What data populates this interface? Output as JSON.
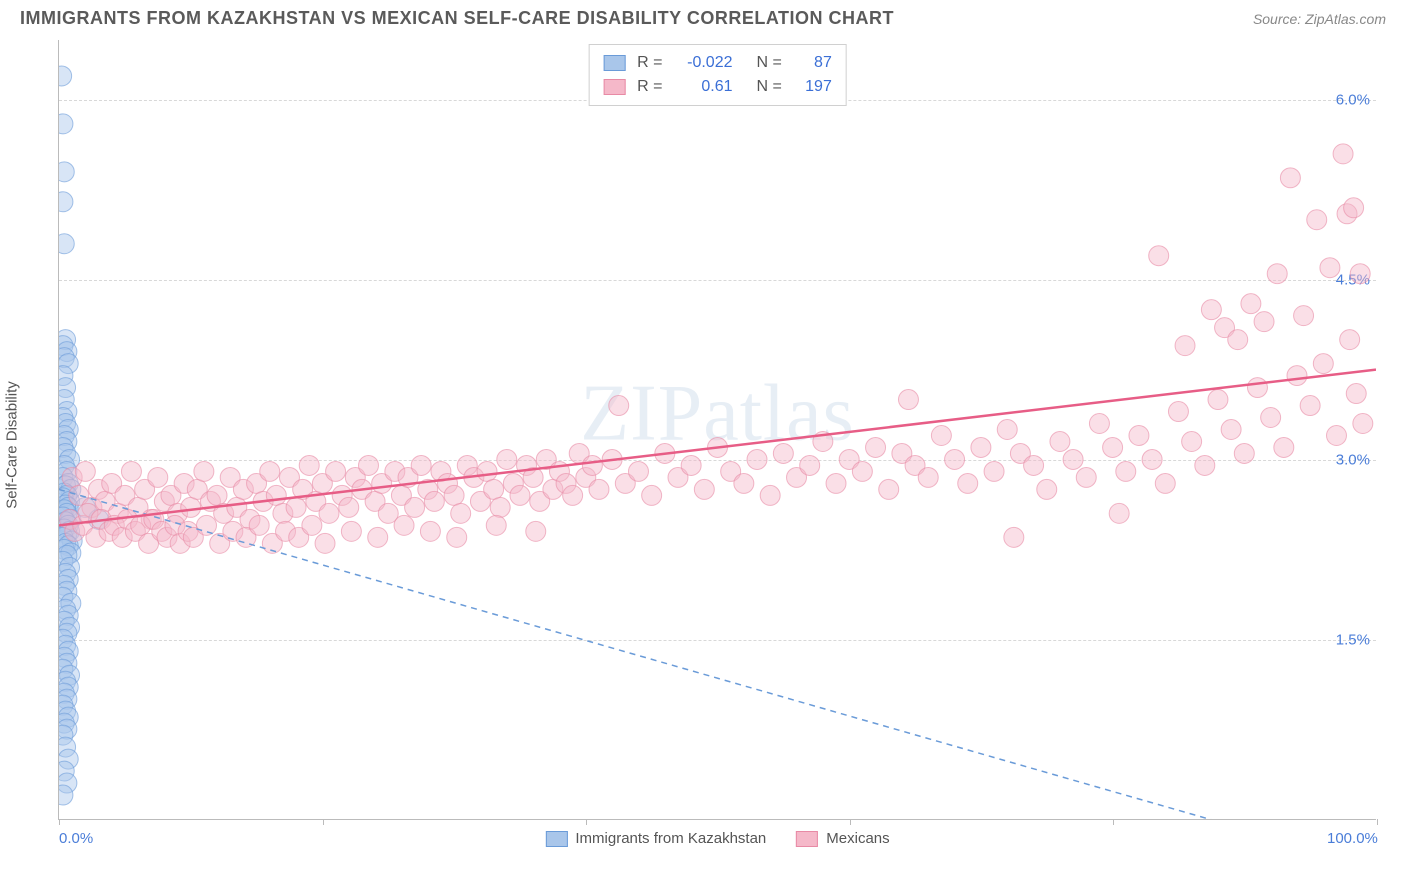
{
  "header": {
    "title": "IMMIGRANTS FROM KAZAKHSTAN VS MEXICAN SELF-CARE DISABILITY CORRELATION CHART",
    "source": "Source: ZipAtlas.com"
  },
  "watermark": "ZIPatlas",
  "chart": {
    "type": "scatter",
    "background_color": "#ffffff",
    "grid_color": "#d8d8d8",
    "axis_color": "#bbbbbb",
    "tick_label_color": "#4a7dd8",
    "axis_label_color": "#555555",
    "ylabel": "Self-Care Disability",
    "ylabel_fontsize": 15,
    "xlim": [
      0,
      100
    ],
    "ylim": [
      0,
      6.5
    ],
    "x_ticks": [
      0,
      20,
      40,
      60,
      80,
      100
    ],
    "x_tick_labels_shown": {
      "0": "0.0%",
      "100": "100.0%"
    },
    "y_ticks": [
      1.5,
      3.0,
      4.5,
      6.0
    ],
    "y_tick_labels": [
      "1.5%",
      "3.0%",
      "4.5%",
      "6.0%"
    ],
    "marker_radius": 10,
    "marker_opacity": 0.45,
    "series": [
      {
        "name": "Immigrants from Kazakhstan",
        "color_fill": "#a9c6ea",
        "color_stroke": "#6a9bd8",
        "R": -0.022,
        "N": 87,
        "trend": {
          "style": "dashed",
          "color": "#6a9bd8",
          "width": 1.5,
          "y_at_x0": 2.75,
          "y_at_x100": -0.4
        },
        "points": [
          [
            0.2,
            6.2
          ],
          [
            0.3,
            5.8
          ],
          [
            0.4,
            5.4
          ],
          [
            0.3,
            5.15
          ],
          [
            0.4,
            4.8
          ],
          [
            0.5,
            4.0
          ],
          [
            0.3,
            3.95
          ],
          [
            0.6,
            3.9
          ],
          [
            0.4,
            3.85
          ],
          [
            0.7,
            3.8
          ],
          [
            0.3,
            3.7
          ],
          [
            0.5,
            3.6
          ],
          [
            0.4,
            3.5
          ],
          [
            0.6,
            3.4
          ],
          [
            0.3,
            3.35
          ],
          [
            0.5,
            3.3
          ],
          [
            0.7,
            3.25
          ],
          [
            0.4,
            3.2
          ],
          [
            0.6,
            3.15
          ],
          [
            0.3,
            3.1
          ],
          [
            0.5,
            3.05
          ],
          [
            0.8,
            3.0
          ],
          [
            0.4,
            2.95
          ],
          [
            0.6,
            2.9
          ],
          [
            0.3,
            2.85
          ],
          [
            0.7,
            2.8
          ],
          [
            0.5,
            2.78
          ],
          [
            0.9,
            2.75
          ],
          [
            0.4,
            2.72
          ],
          [
            0.6,
            2.7
          ],
          [
            0.3,
            2.68
          ],
          [
            0.8,
            2.65
          ],
          [
            0.5,
            2.62
          ],
          [
            0.7,
            2.6
          ],
          [
            0.4,
            2.58
          ],
          [
            0.6,
            2.55
          ],
          [
            0.3,
            2.52
          ],
          [
            0.9,
            2.5
          ],
          [
            0.5,
            2.48
          ],
          [
            0.7,
            2.45
          ],
          [
            0.4,
            2.42
          ],
          [
            0.8,
            2.4
          ],
          [
            0.6,
            2.38
          ],
          [
            0.3,
            2.35
          ],
          [
            1.0,
            2.32
          ],
          [
            0.5,
            2.3
          ],
          [
            0.7,
            2.28
          ],
          [
            0.4,
            2.25
          ],
          [
            0.9,
            2.22
          ],
          [
            0.6,
            2.2
          ],
          [
            0.3,
            2.15
          ],
          [
            0.8,
            2.1
          ],
          [
            0.5,
            2.05
          ],
          [
            0.7,
            2.0
          ],
          [
            0.4,
            1.95
          ],
          [
            0.6,
            1.9
          ],
          [
            0.3,
            1.85
          ],
          [
            0.9,
            1.8
          ],
          [
            0.5,
            1.75
          ],
          [
            0.7,
            1.7
          ],
          [
            0.4,
            1.65
          ],
          [
            0.8,
            1.6
          ],
          [
            0.6,
            1.55
          ],
          [
            0.3,
            1.5
          ],
          [
            0.5,
            1.45
          ],
          [
            0.7,
            1.4
          ],
          [
            0.4,
            1.35
          ],
          [
            0.6,
            1.3
          ],
          [
            0.3,
            1.25
          ],
          [
            0.8,
            1.2
          ],
          [
            0.5,
            1.15
          ],
          [
            0.7,
            1.1
          ],
          [
            0.4,
            1.05
          ],
          [
            0.6,
            1.0
          ],
          [
            0.3,
            0.95
          ],
          [
            0.5,
            0.9
          ],
          [
            0.7,
            0.85
          ],
          [
            0.4,
            0.8
          ],
          [
            0.6,
            0.75
          ],
          [
            0.3,
            0.7
          ],
          [
            0.5,
            0.6
          ],
          [
            0.7,
            0.5
          ],
          [
            0.4,
            0.4
          ],
          [
            0.6,
            0.3
          ],
          [
            0.3,
            0.2
          ],
          [
            2.0,
            2.6
          ],
          [
            3.0,
            2.5
          ]
        ]
      },
      {
        "name": "Mexicans",
        "color_fill": "#f5b8c9",
        "color_stroke": "#e88aa5",
        "R": 0.61,
        "N": 197,
        "trend": {
          "style": "solid",
          "color": "#e75d86",
          "width": 2.5,
          "y_at_x0": 2.45,
          "y_at_x100": 3.75
        },
        "points": [
          [
            1.0,
            2.85
          ],
          [
            1.5,
            2.7
          ],
          [
            2.0,
            2.9
          ],
          [
            2.5,
            2.6
          ],
          [
            3.0,
            2.75
          ],
          [
            3.5,
            2.65
          ],
          [
            4.0,
            2.8
          ],
          [
            4.5,
            2.55
          ],
          [
            5.0,
            2.7
          ],
          [
            5.5,
            2.9
          ],
          [
            6.0,
            2.6
          ],
          [
            6.5,
            2.75
          ],
          [
            7.0,
            2.5
          ],
          [
            7.5,
            2.85
          ],
          [
            8.0,
            2.65
          ],
          [
            8.5,
            2.7
          ],
          [
            9.0,
            2.55
          ],
          [
            9.5,
            2.8
          ],
          [
            10.0,
            2.6
          ],
          [
            10.5,
            2.75
          ],
          [
            11.0,
            2.9
          ],
          [
            11.5,
            2.65
          ],
          [
            12.0,
            2.7
          ],
          [
            12.5,
            2.55
          ],
          [
            13.0,
            2.85
          ],
          [
            13.5,
            2.6
          ],
          [
            14.0,
            2.75
          ],
          [
            14.5,
            2.5
          ],
          [
            15.0,
            2.8
          ],
          [
            15.5,
            2.65
          ],
          [
            16.0,
            2.9
          ],
          [
            16.5,
            2.7
          ],
          [
            17.0,
            2.55
          ],
          [
            17.5,
            2.85
          ],
          [
            18.0,
            2.6
          ],
          [
            18.5,
            2.75
          ],
          [
            19.0,
            2.95
          ],
          [
            19.5,
            2.65
          ],
          [
            20.0,
            2.8
          ],
          [
            20.5,
            2.55
          ],
          [
            21.0,
            2.9
          ],
          [
            21.5,
            2.7
          ],
          [
            22.0,
            2.6
          ],
          [
            22.5,
            2.85
          ],
          [
            23.0,
            2.75
          ],
          [
            23.5,
            2.95
          ],
          [
            24.0,
            2.65
          ],
          [
            24.5,
            2.8
          ],
          [
            25.0,
            2.55
          ],
          [
            25.5,
            2.9
          ],
          [
            26.0,
            2.7
          ],
          [
            26.5,
            2.85
          ],
          [
            27.0,
            2.6
          ],
          [
            27.5,
            2.95
          ],
          [
            28.0,
            2.75
          ],
          [
            28.5,
            2.65
          ],
          [
            29.0,
            2.9
          ],
          [
            29.5,
            2.8
          ],
          [
            30.0,
            2.7
          ],
          [
            30.5,
            2.55
          ],
          [
            31.0,
            2.95
          ],
          [
            31.5,
            2.85
          ],
          [
            32.0,
            2.65
          ],
          [
            32.5,
            2.9
          ],
          [
            33.0,
            2.75
          ],
          [
            33.5,
            2.6
          ],
          [
            34.0,
            3.0
          ],
          [
            34.5,
            2.8
          ],
          [
            35.0,
            2.7
          ],
          [
            35.5,
            2.95
          ],
          [
            36.0,
            2.85
          ],
          [
            36.5,
            2.65
          ],
          [
            37.0,
            3.0
          ],
          [
            37.5,
            2.75
          ],
          [
            38.0,
            2.9
          ],
          [
            38.5,
            2.8
          ],
          [
            39.0,
            2.7
          ],
          [
            39.5,
            3.05
          ],
          [
            40.0,
            2.85
          ],
          [
            40.5,
            2.95
          ],
          [
            41.0,
            2.75
          ],
          [
            42.0,
            3.0
          ],
          [
            42.5,
            3.45
          ],
          [
            43.0,
            2.8
          ],
          [
            44.0,
            2.9
          ],
          [
            45.0,
            2.7
          ],
          [
            46.0,
            3.05
          ],
          [
            47.0,
            2.85
          ],
          [
            48.0,
            2.95
          ],
          [
            49.0,
            2.75
          ],
          [
            50.0,
            3.1
          ],
          [
            51.0,
            2.9
          ],
          [
            52.0,
            2.8
          ],
          [
            53.0,
            3.0
          ],
          [
            54.0,
            2.7
          ],
          [
            55.0,
            3.05
          ],
          [
            56.0,
            2.85
          ],
          [
            57.0,
            2.95
          ],
          [
            58.0,
            3.15
          ],
          [
            59.0,
            2.8
          ],
          [
            60.0,
            3.0
          ],
          [
            61.0,
            2.9
          ],
          [
            62.0,
            3.1
          ],
          [
            63.0,
            2.75
          ],
          [
            64.0,
            3.05
          ],
          [
            64.5,
            3.5
          ],
          [
            65.0,
            2.95
          ],
          [
            66.0,
            2.85
          ],
          [
            67.0,
            3.2
          ],
          [
            68.0,
            3.0
          ],
          [
            69.0,
            2.8
          ],
          [
            70.0,
            3.1
          ],
          [
            71.0,
            2.9
          ],
          [
            72.0,
            3.25
          ],
          [
            72.5,
            2.35
          ],
          [
            73.0,
            3.05
          ],
          [
            74.0,
            2.95
          ],
          [
            75.0,
            2.75
          ],
          [
            76.0,
            3.15
          ],
          [
            77.0,
            3.0
          ],
          [
            78.0,
            2.85
          ],
          [
            79.0,
            3.3
          ],
          [
            80.0,
            3.1
          ],
          [
            80.5,
            2.55
          ],
          [
            81.0,
            2.9
          ],
          [
            82.0,
            3.2
          ],
          [
            83.0,
            3.0
          ],
          [
            83.5,
            4.7
          ],
          [
            84.0,
            2.8
          ],
          [
            85.0,
            3.4
          ],
          [
            85.5,
            3.95
          ],
          [
            86.0,
            3.15
          ],
          [
            87.0,
            2.95
          ],
          [
            87.5,
            4.25
          ],
          [
            88.0,
            3.5
          ],
          [
            88.5,
            4.1
          ],
          [
            89.0,
            3.25
          ],
          [
            89.5,
            4.0
          ],
          [
            90.0,
            3.05
          ],
          [
            90.5,
            4.3
          ],
          [
            91.0,
            3.6
          ],
          [
            91.5,
            4.15
          ],
          [
            92.0,
            3.35
          ],
          [
            92.5,
            4.55
          ],
          [
            93.0,
            3.1
          ],
          [
            93.5,
            5.35
          ],
          [
            94.0,
            3.7
          ],
          [
            94.5,
            4.2
          ],
          [
            95.0,
            3.45
          ],
          [
            95.5,
            5.0
          ],
          [
            96.0,
            3.8
          ],
          [
            96.5,
            4.6
          ],
          [
            97.0,
            3.2
          ],
          [
            97.5,
            5.55
          ],
          [
            97.8,
            5.05
          ],
          [
            98.0,
            4.0
          ],
          [
            98.3,
            5.1
          ],
          [
            98.5,
            3.55
          ],
          [
            98.8,
            4.55
          ],
          [
            99.0,
            3.3
          ],
          [
            0.8,
            2.5
          ],
          [
            1.2,
            2.4
          ],
          [
            1.8,
            2.45
          ],
          [
            2.2,
            2.55
          ],
          [
            2.8,
            2.35
          ],
          [
            3.2,
            2.5
          ],
          [
            3.8,
            2.4
          ],
          [
            4.2,
            2.45
          ],
          [
            4.8,
            2.35
          ],
          [
            5.2,
            2.5
          ],
          [
            5.8,
            2.4
          ],
          [
            6.2,
            2.45
          ],
          [
            6.8,
            2.3
          ],
          [
            7.2,
            2.5
          ],
          [
            7.8,
            2.4
          ],
          [
            8.2,
            2.35
          ],
          [
            8.8,
            2.45
          ],
          [
            9.2,
            2.3
          ],
          [
            9.8,
            2.4
          ],
          [
            10.2,
            2.35
          ],
          [
            11.2,
            2.45
          ],
          [
            12.2,
            2.3
          ],
          [
            13.2,
            2.4
          ],
          [
            14.2,
            2.35
          ],
          [
            15.2,
            2.45
          ],
          [
            16.2,
            2.3
          ],
          [
            17.2,
            2.4
          ],
          [
            18.2,
            2.35
          ],
          [
            19.2,
            2.45
          ],
          [
            20.2,
            2.3
          ],
          [
            22.2,
            2.4
          ],
          [
            24.2,
            2.35
          ],
          [
            26.2,
            2.45
          ],
          [
            28.2,
            2.4
          ],
          [
            30.2,
            2.35
          ],
          [
            33.2,
            2.45
          ],
          [
            36.2,
            2.4
          ]
        ]
      }
    ],
    "legend_bottom": [
      {
        "swatch_fill": "#a9c6ea",
        "swatch_stroke": "#6a9bd8",
        "label": "Immigrants from Kazakhstan"
      },
      {
        "swatch_fill": "#f5b8c9",
        "swatch_stroke": "#e88aa5",
        "label": "Mexicans"
      }
    ]
  }
}
